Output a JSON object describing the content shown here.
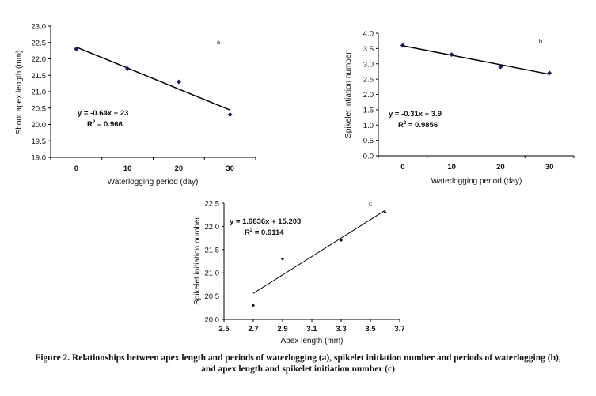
{
  "chart_data": [
    {
      "type": "scatter",
      "id": "a",
      "panel_label": "a",
      "title": "",
      "xlabel": "Waterlogging period (day)",
      "ylabel": "Shoot apex length (mm)",
      "categories": [
        "0",
        "10",
        "20",
        "30"
      ],
      "x": [
        0,
        10,
        20,
        30
      ],
      "y": [
        22.3,
        21.7,
        21.3,
        20.3
      ],
      "ylim": [
        19.0,
        23.0
      ],
      "yticks": [
        "19.0",
        "19.5",
        "20.0",
        "20.5",
        "21.0",
        "21.5",
        "22.0",
        "22.5",
        "23.0"
      ],
      "trendline": {
        "slope": -0.64,
        "intercept": 23,
        "equation": "y = -0.64x + 23",
        "r2_prefix": "R",
        "r2_sup": "2",
        "r2_value": " = 0.966"
      },
      "marker_color": "#1a1a6e",
      "line_color": "#000000",
      "grid": false
    },
    {
      "type": "scatter",
      "id": "b",
      "panel_label": "b",
      "title": "",
      "xlabel": "Waterlogging period (day)",
      "ylabel": "Spikelet intiation number",
      "categories": [
        "0",
        "10",
        "20",
        "30"
      ],
      "x": [
        0,
        10,
        20,
        30
      ],
      "y": [
        3.6,
        3.3,
        2.9,
        2.7
      ],
      "ylim": [
        0.0,
        4.0
      ],
      "yticks": [
        "0.0",
        "0.5",
        "1.0",
        "1.5",
        "2.0",
        "2.5",
        "3.0",
        "3.5",
        "4.0"
      ],
      "trendline": {
        "slope": -0.31,
        "intercept": 3.9,
        "equation": "y = -0.31x + 3.9",
        "r2_prefix": "R",
        "r2_sup": "2",
        "r2_value": " = 0.9856"
      },
      "marker_color": "#1a1a6e",
      "line_color": "#000000",
      "grid": false
    },
    {
      "type": "scatter",
      "id": "c",
      "panel_label": "c",
      "title": "",
      "xlabel": "Apex length (mm)",
      "ylabel": "Spikelet initiation number",
      "x": [
        2.7,
        2.9,
        3.3,
        3.6
      ],
      "y": [
        20.3,
        21.3,
        21.7,
        22.3
      ],
      "xlim": [
        2.5,
        3.7
      ],
      "xticks": [
        "2.5",
        "2.7",
        "2.9",
        "3.1",
        "3.3",
        "3.5",
        "3.7"
      ],
      "ylim": [
        20.0,
        22.5
      ],
      "yticks": [
        "20.0",
        "20.5",
        "21.0",
        "21.5",
        "22.0",
        "22.5"
      ],
      "trendline": {
        "slope": 1.9836,
        "intercept": 15.203,
        "x_range": [
          2.7,
          3.6
        ],
        "equation": "y = 1.9836x + 15.203",
        "r2_prefix": "R",
        "r2_sup": "2",
        "r2_value": " = 0.9114"
      },
      "marker_color": "#000000",
      "line_color": "#000000",
      "grid": false
    }
  ],
  "caption": {
    "line1": "Figure 2. Relationships between apex length and periods of waterlogging (a), spikelet initiation number and periods of waterlogging (b),",
    "line2": "and apex length and spikelet initiation number (c)"
  }
}
